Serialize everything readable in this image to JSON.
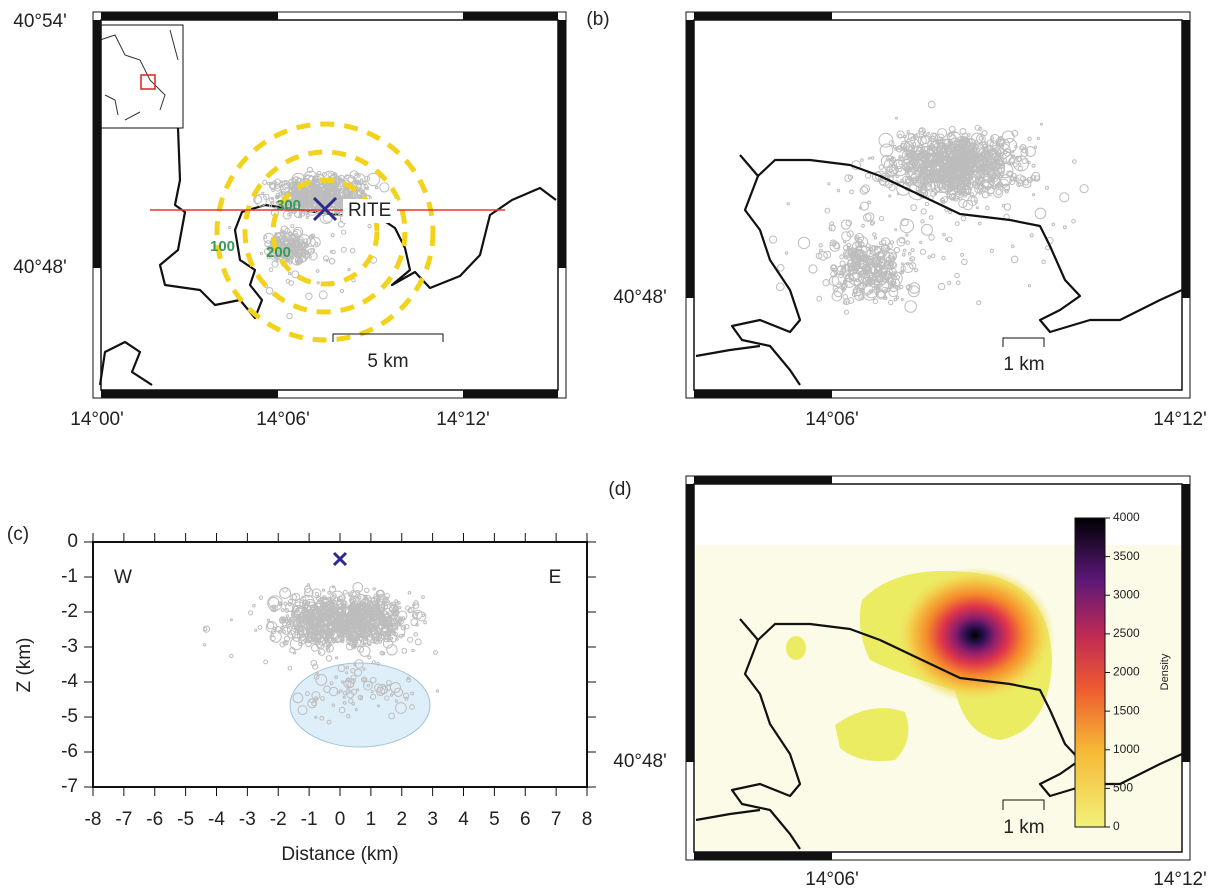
{
  "panel_a": {
    "lat_labels": [
      "40°54'",
      "40°48'"
    ],
    "lon_labels": [
      "14°00'",
      "14°06'",
      "14°12'"
    ],
    "station": "RITE",
    "contour_labels": [
      "300",
      "100",
      "200"
    ],
    "scale_bar": "5 km"
  },
  "panel_b": {
    "label": "(b)",
    "lat_labels": [
      "40°48'"
    ],
    "lon_labels": [
      "14°06'",
      "14°12'"
    ],
    "scale_bar": "1 km"
  },
  "panel_c": {
    "label": "(c)",
    "xlabel": "Distance (km)",
    "ylabel": "Z (km)",
    "west": "W",
    "east": "E",
    "xlim": [
      -8,
      8
    ],
    "xticks": [
      -8,
      -7,
      -6,
      -5,
      -4,
      -3,
      -2,
      -1,
      0,
      1,
      2,
      3,
      4,
      5,
      6,
      7,
      8
    ],
    "ylim": [
      -7,
      0
    ],
    "yticks": [
      0,
      -1,
      -2,
      -3,
      -4,
      -5,
      -6,
      -7
    ]
  },
  "panel_d": {
    "label": "(d)",
    "lat_labels": [
      "40°48'"
    ],
    "lon_labels": [
      "14°06'",
      "14°12'"
    ],
    "scale_bar": "1 km",
    "colorbar": {
      "label": "Density",
      "lim": [
        0,
        4000
      ],
      "ticks": [
        0,
        500,
        1000,
        1500,
        2000,
        2500,
        3000,
        3500,
        4000
      ]
    }
  }
}
